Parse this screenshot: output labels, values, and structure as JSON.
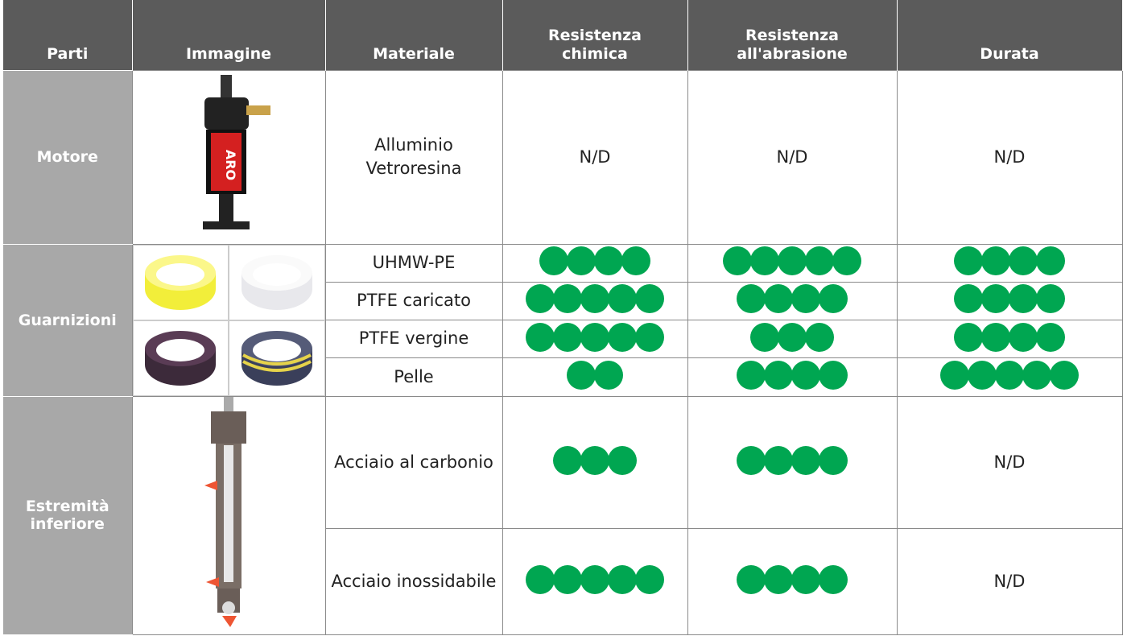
{
  "header": [
    "Parti",
    "Immagine",
    "Materiale",
    "Resistenza chimica",
    "Resistenza all'abrasione",
    "Durata"
  ],
  "groups": [
    {
      "part": "Motore",
      "rows": [
        {
          "material": "Alluminio Vetroresina",
          "ratings": [
            "N/D",
            "N/D",
            "N/D"
          ]
        }
      ]
    },
    {
      "part": "Guarnizioni",
      "rows": [
        {
          "material": "UHMW-PE",
          "ratings": [
            4,
            5,
            4
          ]
        },
        {
          "material": "PTFE caricato",
          "ratings": [
            5,
            4,
            4
          ]
        },
        {
          "material": "PTFE vergine",
          "ratings": [
            5,
            3,
            4
          ]
        },
        {
          "material": "Pelle",
          "ratings": [
            2,
            4,
            5
          ]
        }
      ]
    },
    {
      "part": "Estremità inferiore",
      "rows": [
        {
          "material": "Acciaio al carbonio",
          "ratings": [
            3,
            4,
            "N/D"
          ]
        },
        {
          "material": "Acciaio inossidabile",
          "ratings": [
            5,
            4,
            "N/D"
          ]
        }
      ]
    }
  ]
}
